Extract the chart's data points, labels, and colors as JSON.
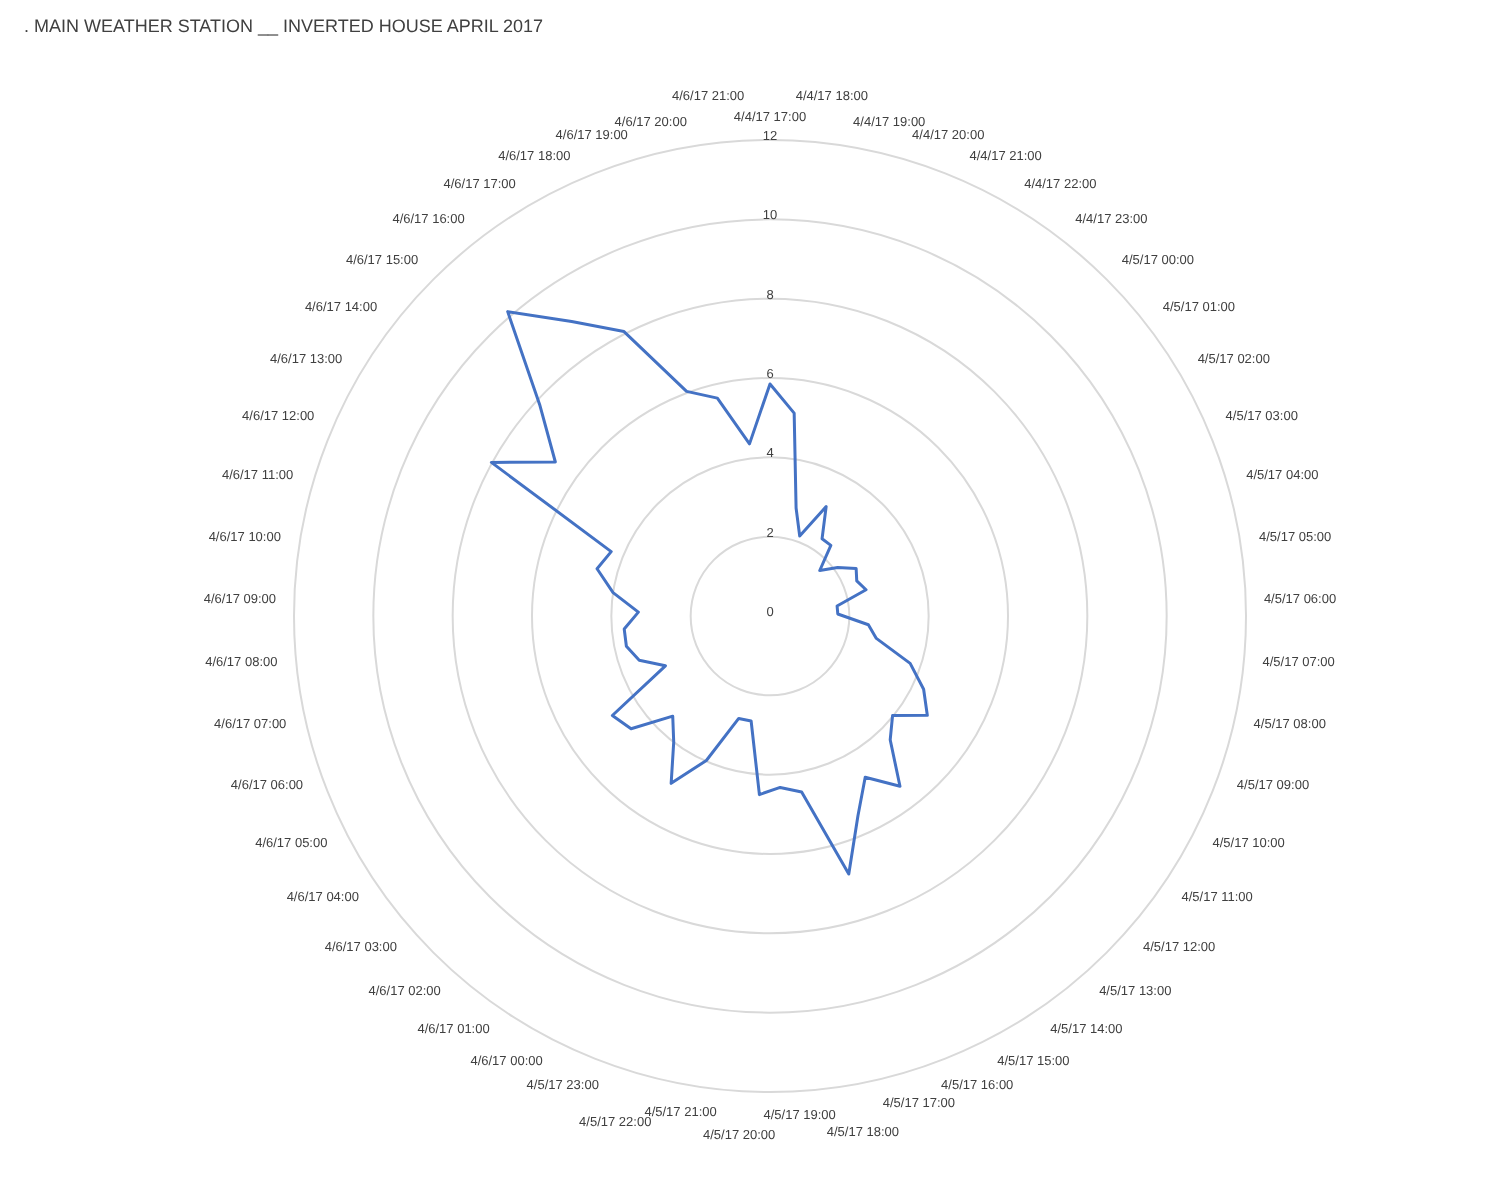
{
  "chart_data": {
    "type": "radar",
    "title": ". MAIN WEATHER STATION __ INVERTED HOUSE APRIL 2017",
    "categories": [
      "4/4/17 17:00",
      "4/4/17 18:00",
      "4/4/17 19:00",
      "4/4/17 20:00",
      "4/4/17 21:00",
      "4/4/17 22:00",
      "4/4/17 23:00",
      "4/5/17 00:00",
      "4/5/17 01:00",
      "4/5/17 02:00",
      "4/5/17 03:00",
      "4/5/17 04:00",
      "4/5/17 05:00",
      "4/5/17 06:00",
      "4/5/17 07:00",
      "4/5/17 08:00",
      "4/5/17 09:00",
      "4/5/17 10:00",
      "4/5/17 11:00",
      "4/5/17 12:00",
      "4/5/17 13:00",
      "4/5/17 14:00",
      "4/5/17 15:00",
      "4/5/17 16:00",
      "4/5/17 17:00",
      "4/5/17 18:00",
      "4/5/17 19:00",
      "4/5/17 20:00",
      "4/5/17 21:00",
      "4/5/17 22:00",
      "4/5/17 23:00",
      "4/6/17 00:00",
      "4/6/17 01:00",
      "4/6/17 02:00",
      "4/6/17 03:00",
      "4/6/17 04:00",
      "4/6/17 05:00",
      "4/6/17 06:00",
      "4/6/17 07:00",
      "4/6/17 08:00",
      "4/6/17 09:00",
      "4/6/17 10:00",
      "4/6/17 11:00",
      "4/6/17 12:00",
      "4/6/17 13:00",
      "4/6/17 14:00",
      "4/6/17 15:00",
      "4/6/17 16:00",
      "4/6/17 17:00",
      "4/6/17 18:00",
      "4/6/17 19:00",
      "4/6/17 20:00",
      "4/6/17 21:00"
    ],
    "series": [
      {
        "color": "#4472c4",
        "values": [
          5.85,
          5.15,
          2.8,
          2.15,
          3.1,
          2.35,
          2.35,
          1.7,
          2.1,
          2.48,
          2.36,
          2.51,
          1.71,
          1.71,
          2.49,
          2.74,
          3.73,
          4.29,
          4.69,
          3.98,
          4.35,
          5.4,
          4.72,
          5.5,
          6.8,
          4.51,
          4.33,
          4.51,
          2.69,
          2.7,
          3.98,
          4.9,
          4.0,
          3.52,
          4.51,
          4.7,
          2.92,
          3.48,
          3.7,
          3.69,
          3.32,
          4.0,
          4.52,
          4.32,
          8.02,
          6.66,
          7.86,
          10.13,
          8.95,
          8.06,
          6.04,
          5.65,
          4.37
        ]
      }
    ],
    "ylim": [
      0,
      12
    ],
    "yticks": [
      0,
      2,
      4,
      6,
      8,
      10,
      12
    ],
    "grid": true
  }
}
